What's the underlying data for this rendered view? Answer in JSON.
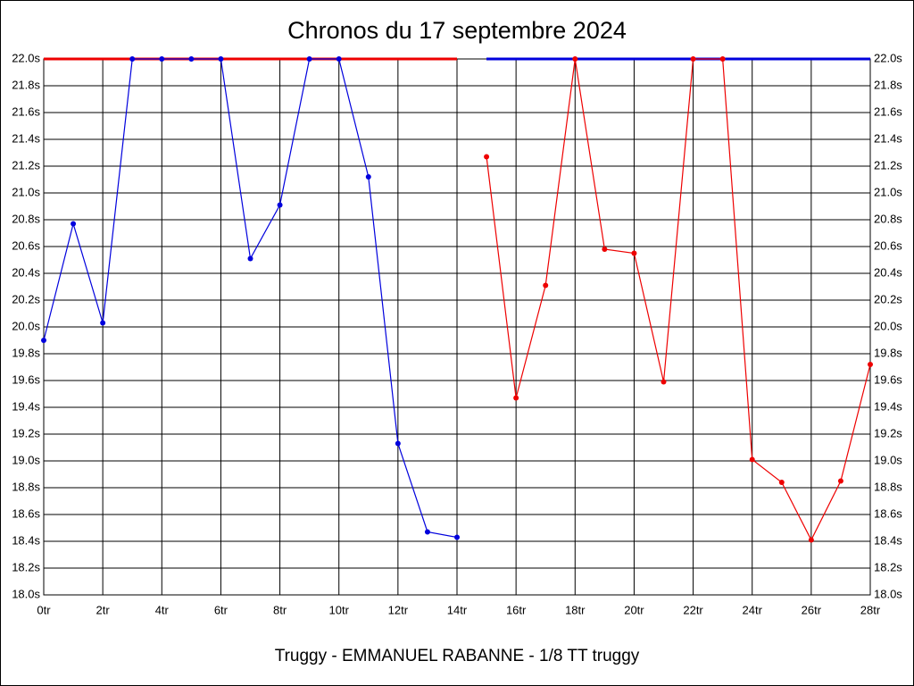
{
  "chart_data": {
    "type": "line",
    "title": "Chronos du 17 septembre 2024",
    "subtitle": "Truggy - EMMANUEL RABANNE - 1/8 TT truggy",
    "grid": true,
    "xlim": [
      0,
      28
    ],
    "xticks": [
      {
        "value": 0,
        "label": "0tr"
      },
      {
        "value": 2,
        "label": "2tr"
      },
      {
        "value": 4,
        "label": "4tr"
      },
      {
        "value": 6,
        "label": "6tr"
      },
      {
        "value": 8,
        "label": "8tr"
      },
      {
        "value": 10,
        "label": "10tr"
      },
      {
        "value": 12,
        "label": "12tr"
      },
      {
        "value": 14,
        "label": "14tr"
      },
      {
        "value": 16,
        "label": "16tr"
      },
      {
        "value": 18,
        "label": "18tr"
      },
      {
        "value": 20,
        "label": "20tr"
      },
      {
        "value": 22,
        "label": "22tr"
      },
      {
        "value": 24,
        "label": "24tr"
      },
      {
        "value": 26,
        "label": "26tr"
      },
      {
        "value": 28,
        "label": "28tr"
      }
    ],
    "ylim": [
      18.0,
      22.0
    ],
    "yticks": [
      {
        "value": 18.0,
        "label": "18.0s"
      },
      {
        "value": 18.2,
        "label": "18.2s"
      },
      {
        "value": 18.4,
        "label": "18.4s"
      },
      {
        "value": 18.6,
        "label": "18.6s"
      },
      {
        "value": 18.8,
        "label": "18.8s"
      },
      {
        "value": 19.0,
        "label": "19.0s"
      },
      {
        "value": 19.2,
        "label": "19.2s"
      },
      {
        "value": 19.4,
        "label": "19.4s"
      },
      {
        "value": 19.6,
        "label": "19.6s"
      },
      {
        "value": 19.8,
        "label": "19.8s"
      },
      {
        "value": 20.0,
        "label": "20.0s"
      },
      {
        "value": 20.2,
        "label": "20.2s"
      },
      {
        "value": 20.4,
        "label": "20.4s"
      },
      {
        "value": 20.6,
        "label": "20.6s"
      },
      {
        "value": 20.8,
        "label": "20.8s"
      },
      {
        "value": 21.0,
        "label": "21.0s"
      },
      {
        "value": 21.2,
        "label": "21.2s"
      },
      {
        "value": 21.4,
        "label": "21.4s"
      },
      {
        "value": 21.6,
        "label": "21.6s"
      },
      {
        "value": 21.8,
        "label": "21.8s"
      },
      {
        "value": 22.0,
        "label": "22.0s"
      }
    ],
    "series": [
      {
        "color": "#0000dd",
        "x": [
          0,
          1,
          2,
          3,
          4,
          5,
          6,
          7,
          8,
          9,
          10,
          11,
          12,
          13,
          14
        ],
        "values": [
          19.9,
          20.77,
          20.03,
          22.0,
          22.0,
          22.0,
          22.0,
          20.51,
          20.91,
          22.0,
          22.0,
          21.12,
          19.13,
          18.47,
          18.43
        ]
      },
      {
        "color": "#ee0000",
        "x": [
          15,
          16,
          17,
          18,
          19,
          20,
          21,
          22,
          23,
          24,
          25,
          26,
          27,
          28
        ],
        "values": [
          21.27,
          19.47,
          20.31,
          22.0,
          20.58,
          20.55,
          19.59,
          22.0,
          22.0,
          19.01,
          18.84,
          18.41,
          18.85,
          19.72
        ]
      }
    ]
  }
}
